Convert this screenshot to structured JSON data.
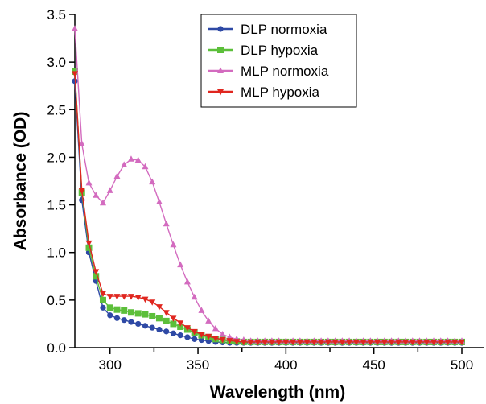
{
  "chart_data": {
    "type": "line",
    "xlabel": "Wavelength (nm)",
    "ylabel": "Absorbance (OD)",
    "xlim": [
      280,
      500
    ],
    "ylim": [
      0,
      3.5
    ],
    "x_ticks": [
      "300",
      "350",
      "400",
      "450",
      "500"
    ],
    "x_tick_values": [
      300,
      350,
      400,
      450,
      500
    ],
    "y_ticks": [
      "0.0",
      "0.5",
      "1.0",
      "1.5",
      "2.0",
      "2.5",
      "3.0",
      "3.5"
    ],
    "y_tick_values": [
      0,
      0.5,
      1.0,
      1.5,
      2.0,
      2.5,
      3.0,
      3.5
    ],
    "grid": false,
    "legend_position": "top-right",
    "x": [
      280,
      284,
      288,
      292,
      296,
      300,
      304,
      308,
      312,
      316,
      320,
      324,
      328,
      332,
      336,
      340,
      344,
      348,
      352,
      356,
      360,
      364,
      368,
      372,
      376,
      380,
      384,
      388,
      392,
      396,
      400,
      404,
      408,
      412,
      416,
      420,
      424,
      428,
      432,
      436,
      440,
      444,
      448,
      452,
      456,
      460,
      464,
      468,
      472,
      476,
      480,
      484,
      488,
      492,
      496,
      500
    ],
    "series": [
      {
        "name": "DLP normoxia",
        "color": "#2e49a5",
        "marker": "circle",
        "values": [
          2.8,
          1.55,
          1.0,
          0.7,
          0.42,
          0.34,
          0.31,
          0.29,
          0.27,
          0.25,
          0.23,
          0.21,
          0.19,
          0.17,
          0.15,
          0.13,
          0.11,
          0.09,
          0.08,
          0.07,
          0.06,
          0.055,
          0.05,
          0.05,
          0.05,
          0.05,
          0.05,
          0.05,
          0.05,
          0.05,
          0.05,
          0.05,
          0.05,
          0.05,
          0.05,
          0.05,
          0.05,
          0.05,
          0.05,
          0.05,
          0.05,
          0.05,
          0.05,
          0.05,
          0.05,
          0.05,
          0.05,
          0.05,
          0.05,
          0.05,
          0.05,
          0.05,
          0.05,
          0.05,
          0.05,
          0.05
        ]
      },
      {
        "name": "DLP hypoxia",
        "color": "#5cbf3a",
        "marker": "square",
        "values": [
          2.9,
          1.63,
          1.05,
          0.75,
          0.5,
          0.42,
          0.4,
          0.39,
          0.37,
          0.36,
          0.35,
          0.33,
          0.31,
          0.28,
          0.25,
          0.22,
          0.19,
          0.16,
          0.13,
          0.11,
          0.09,
          0.08,
          0.07,
          0.065,
          0.06,
          0.06,
          0.06,
          0.06,
          0.06,
          0.06,
          0.06,
          0.06,
          0.06,
          0.06,
          0.06,
          0.06,
          0.06,
          0.06,
          0.06,
          0.06,
          0.06,
          0.06,
          0.06,
          0.06,
          0.06,
          0.06,
          0.06,
          0.06,
          0.06,
          0.06,
          0.06,
          0.06,
          0.06,
          0.06,
          0.06,
          0.06
        ]
      },
      {
        "name": "MLP normoxia",
        "color": "#d36bbf",
        "marker": "triangle-up",
        "values": [
          3.35,
          2.14,
          1.73,
          1.6,
          1.52,
          1.65,
          1.8,
          1.92,
          1.98,
          1.97,
          1.9,
          1.74,
          1.53,
          1.3,
          1.08,
          0.87,
          0.69,
          0.53,
          0.39,
          0.28,
          0.2,
          0.14,
          0.11,
          0.09,
          0.08,
          0.07,
          0.07,
          0.07,
          0.07,
          0.07,
          0.07,
          0.07,
          0.07,
          0.07,
          0.07,
          0.07,
          0.07,
          0.07,
          0.07,
          0.07,
          0.07,
          0.07,
          0.07,
          0.07,
          0.07,
          0.07,
          0.07,
          0.07,
          0.07,
          0.07,
          0.07,
          0.07,
          0.07,
          0.07,
          0.07,
          0.07
        ]
      },
      {
        "name": "MLP hypoxia",
        "color": "#e0261f",
        "marker": "triangle-down",
        "values": [
          2.88,
          1.65,
          1.1,
          0.8,
          0.57,
          0.54,
          0.54,
          0.54,
          0.54,
          0.53,
          0.51,
          0.48,
          0.43,
          0.37,
          0.31,
          0.26,
          0.21,
          0.17,
          0.14,
          0.12,
          0.1,
          0.085,
          0.075,
          0.065,
          0.06,
          0.06,
          0.06,
          0.06,
          0.06,
          0.06,
          0.06,
          0.06,
          0.06,
          0.06,
          0.06,
          0.06,
          0.06,
          0.06,
          0.06,
          0.06,
          0.06,
          0.06,
          0.06,
          0.06,
          0.06,
          0.06,
          0.06,
          0.06,
          0.06,
          0.06,
          0.06,
          0.06,
          0.06,
          0.06,
          0.06,
          0.06
        ]
      }
    ]
  }
}
